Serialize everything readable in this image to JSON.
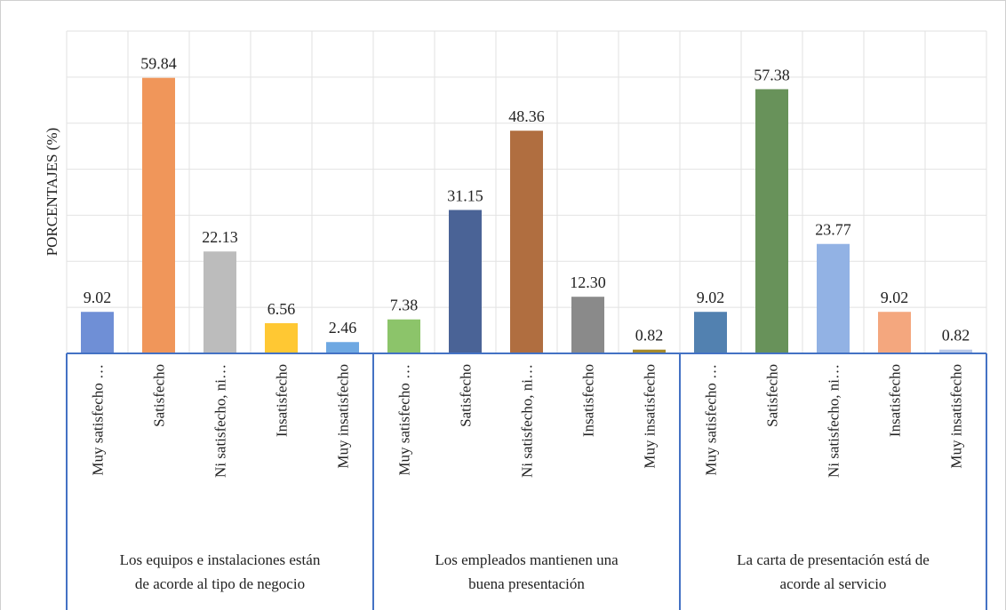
{
  "chart_data": {
    "type": "bar",
    "y_label": "PORCENTAJES (%)",
    "ylim": [
      0,
      70
    ],
    "yticks": [
      0,
      10,
      20,
      30,
      40,
      50,
      60,
      70
    ],
    "grid": true,
    "groups": [
      {
        "label": [
          "Los equipos e instalaciones están",
          "de acorde al tipo de negocio"
        ],
        "categories": [
          "Muy satisfecho …",
          "Satisfecho",
          "Ni satisfecho, ni…",
          "Insatisfecho",
          "Muy insatisfecho"
        ],
        "values": [
          9.02,
          59.84,
          22.13,
          6.56,
          2.46
        ],
        "value_labels": [
          "9.02",
          "59.84",
          "22.13",
          "6.56",
          "2.46"
        ],
        "colors": [
          "#6f8fd6",
          "#f0965a",
          "#bcbcbc",
          "#ffc833",
          "#6ea8e2"
        ]
      },
      {
        "label": [
          "Los empleados mantienen una",
          "buena presentación"
        ],
        "categories": [
          "Muy satisfecho …",
          "Satisfecho",
          "Ni satisfecho, ni…",
          "Insatisfecho",
          "Muy insatisfecho"
        ],
        "values": [
          7.38,
          31.15,
          48.36,
          12.3,
          0.82
        ],
        "value_labels": [
          "7.38",
          "31.15",
          "48.36",
          "12.30",
          "0.82"
        ],
        "colors": [
          "#8cc46a",
          "#4a6396",
          "#b06e40",
          "#8a8a8a",
          "#a58a2a"
        ]
      },
      {
        "label": [
          "La carta de presentación está de",
          "acorde al servicio"
        ],
        "categories": [
          "Muy satisfecho …",
          "Satisfecho",
          "Ni satisfecho, ni…",
          "Insatisfecho",
          "Muy insatisfecho"
        ],
        "values": [
          9.02,
          57.38,
          23.77,
          9.02,
          0.82
        ],
        "value_labels": [
          "9.02",
          "57.38",
          "23.77",
          "9.02",
          "0.82"
        ],
        "colors": [
          "#5281b0",
          "#68925a",
          "#92b2e4",
          "#f4a77e",
          "#b8c8e8"
        ]
      }
    ]
  }
}
